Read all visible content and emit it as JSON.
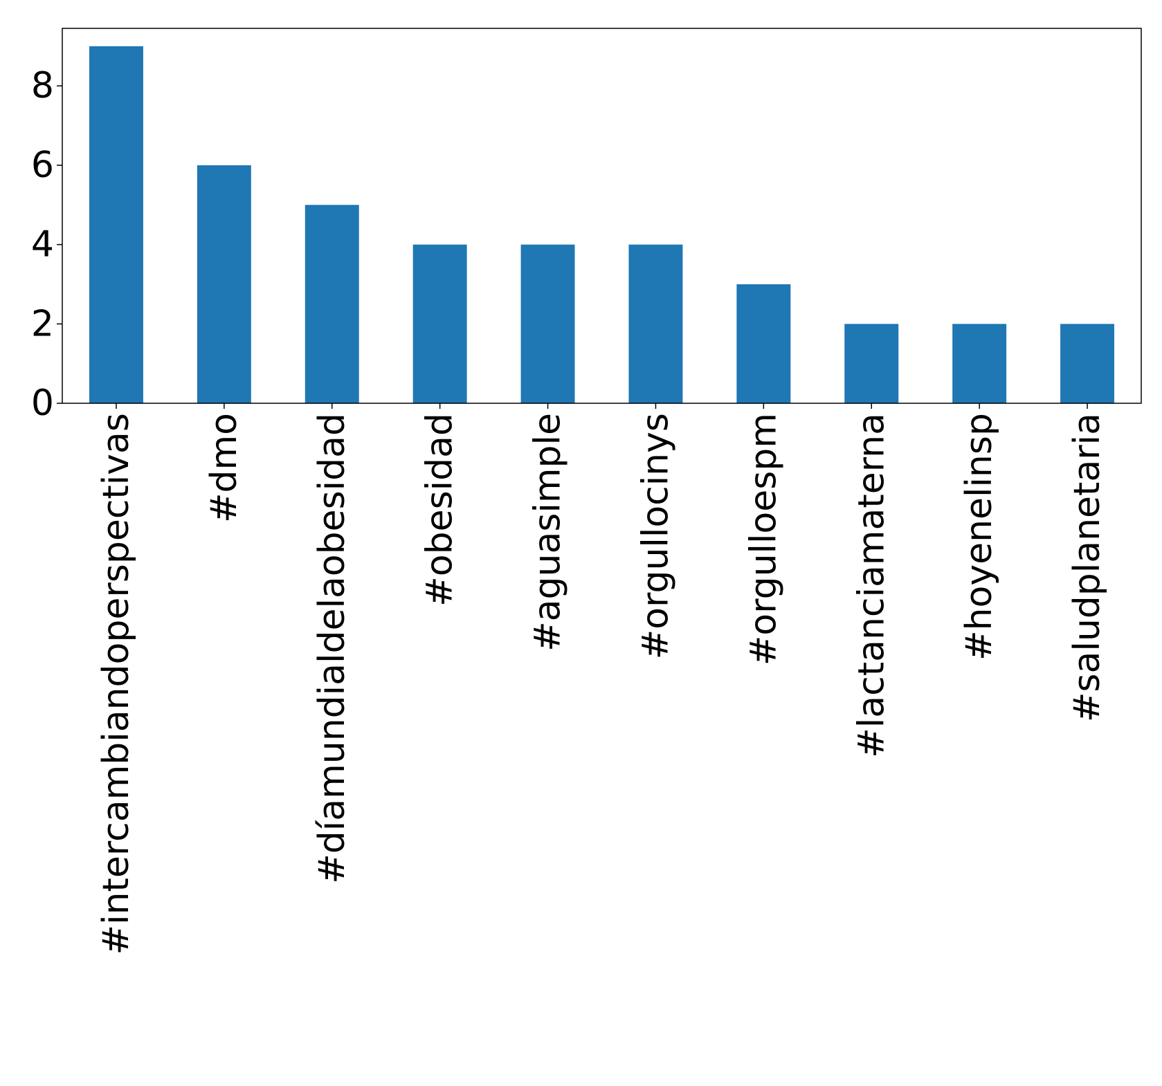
{
  "chart_data": {
    "type": "bar",
    "categories": [
      "#intercambiandoperspectivas",
      "#dmo",
      "#díamundialdelaobesidad",
      "#obesidad",
      "#aguasimple",
      "#orgullocinys",
      "#orgulloespm",
      "#lactanciamaterna",
      "#hoyenelinsp",
      "#saludplanetaria"
    ],
    "values": [
      9,
      6,
      5,
      4,
      4,
      4,
      3,
      2,
      2,
      2
    ],
    "title": "",
    "xlabel": "",
    "ylabel": "",
    "ylim": [
      0,
      9.45
    ],
    "yticks": [
      "0",
      "2",
      "4",
      "6",
      "8"
    ],
    "bar_color": "#1f77b4",
    "grid": false,
    "legend": "none"
  }
}
